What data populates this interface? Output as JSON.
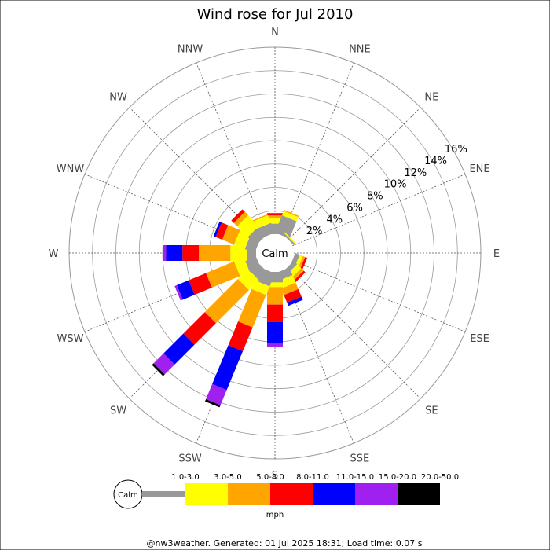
{
  "chart_data": {
    "type": "windrose",
    "title": "Wind rose for Jul 2010",
    "directions": [
      "N",
      "NNE",
      "NE",
      "ENE",
      "E",
      "ESE",
      "SE",
      "SSE",
      "S",
      "SSW",
      "SW",
      "WSW",
      "W",
      "WNW",
      "NW",
      "NNW"
    ],
    "radial_ticks": [
      2,
      4,
      6,
      8,
      10,
      12,
      14,
      16
    ],
    "radial_tick_labels": [
      "2%",
      "4%",
      "6%",
      "8%",
      "10%",
      "12%",
      "14%",
      "16%"
    ],
    "rmax": 16,
    "calm_label": "Calm",
    "unit": "mph",
    "bins": [
      {
        "label": "1.0-3.0",
        "color": "#999999"
      },
      {
        "label": "3.0-5.0",
        "color": "#ffff00"
      },
      {
        "label": "5.0-8.0",
        "color": "#ffa500"
      },
      {
        "label": "8.0-11.0",
        "color": "#ff0000"
      },
      {
        "label": "11.0-15.0",
        "color": "#0000ff"
      },
      {
        "label": "15.0-20.0",
        "color": "#a020f0"
      },
      {
        "label": "20.0-50.0",
        "color": "#000000"
      }
    ],
    "series": [
      {
        "dir": "N",
        "values": [
          0.9,
          0.5,
          0.2,
          0.2,
          0,
          0,
          0
        ]
      },
      {
        "dir": "NNE",
        "values": [
          1.6,
          0.4,
          0.1,
          0,
          0,
          0,
          0
        ]
      },
      {
        "dir": "NE",
        "values": [
          0.15,
          0.1,
          0,
          0,
          0,
          0,
          0
        ]
      },
      {
        "dir": "ENE",
        "values": [
          0,
          0,
          0,
          0,
          0,
          0,
          0
        ]
      },
      {
        "dir": "E",
        "values": [
          0,
          0,
          0,
          0,
          0,
          0,
          0
        ]
      },
      {
        "dir": "ESE",
        "values": [
          0.4,
          0.3,
          0.2,
          0.2,
          0,
          0,
          0
        ]
      },
      {
        "dir": "SE",
        "values": [
          0.4,
          0.5,
          0.3,
          0.2,
          0,
          0,
          0
        ]
      },
      {
        "dir": "SSE",
        "values": [
          0.7,
          0.7,
          0.6,
          0.7,
          0.3,
          0,
          0
        ]
      },
      {
        "dir": "S",
        "values": [
          0.9,
          0.4,
          1.5,
          1.5,
          1.8,
          0.3,
          0
        ]
      },
      {
        "dir": "SSW",
        "values": [
          1.2,
          0.8,
          3.0,
          2.2,
          3.6,
          1.4,
          0.2
        ]
      },
      {
        "dir": "SW",
        "values": [
          1.0,
          1.2,
          4.0,
          2.6,
          2.4,
          1.2,
          0.2
        ]
      },
      {
        "dir": "WSW",
        "values": [
          1.0,
          0.9,
          2.6,
          1.6,
          1.1,
          0.2,
          0
        ]
      },
      {
        "dir": "W",
        "values": [
          0.8,
          1.4,
          2.7,
          1.4,
          1.4,
          0.3,
          0
        ]
      },
      {
        "dir": "WNW",
        "values": [
          0.9,
          1.0,
          1.1,
          0.6,
          0.2,
          0,
          0
        ]
      },
      {
        "dir": "NW",
        "values": [
          1.0,
          1.3,
          0.4,
          0.3,
          0,
          0,
          0
        ]
      },
      {
        "dir": "NNW",
        "values": [
          0.9,
          0.7,
          0.1,
          0,
          0,
          0,
          0
        ]
      }
    ]
  },
  "footer": "@nw3weather. Generated: 01 Jul 2025 18:31; Load time: 0.07 s"
}
